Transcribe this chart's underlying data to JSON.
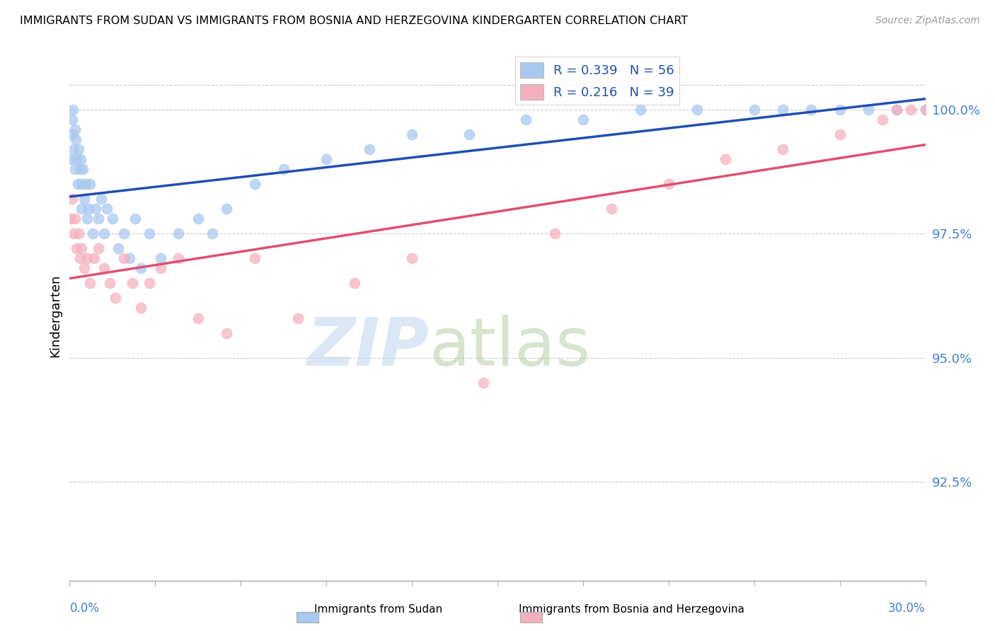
{
  "title": "IMMIGRANTS FROM SUDAN VS IMMIGRANTS FROM BOSNIA AND HERZEGOVINA KINDERGARTEN CORRELATION CHART",
  "source": "Source: ZipAtlas.com",
  "ylabel": "Kindergarten",
  "xlim": [
    0.0,
    30.0
  ],
  "ylim": [
    90.5,
    101.2
  ],
  "yticks": [
    92.5,
    95.0,
    97.5,
    100.0
  ],
  "ytick_labels": [
    "92.5%",
    "95.0%",
    "97.5%",
    "100.0%"
  ],
  "legend_R1": "R = 0.339",
  "legend_N1": "N = 56",
  "legend_R2": "R = 0.216",
  "legend_N2": "N = 39",
  "color_sudan": "#a8c8f0",
  "color_bosnia": "#f5b0c0",
  "trendline_color_sudan": "#2050b0",
  "trendline_color_bosnia": "#e05070",
  "legend_text_color": "#2050b0",
  "ytick_color": "#4080d0",
  "xtick_label_color": "#4080d0",
  "sudan_x": [
    0.05,
    0.08,
    0.1,
    0.12,
    0.15,
    0.18,
    0.2,
    0.22,
    0.25,
    0.28,
    0.3,
    0.35,
    0.38,
    0.4,
    0.42,
    0.45,
    0.5,
    0.55,
    0.6,
    0.65,
    0.7,
    0.8,
    0.9,
    1.0,
    1.1,
    1.2,
    1.3,
    1.5,
    1.7,
    1.9,
    2.1,
    2.3,
    2.5,
    2.8,
    3.2,
    3.8,
    4.5,
    5.0,
    5.5,
    6.5,
    7.5,
    9.0,
    10.5,
    12.0,
    14.0,
    16.0,
    18.0,
    20.0,
    22.0,
    24.0,
    25.0,
    26.0,
    27.0,
    28.0,
    29.0,
    30.0
  ],
  "sudan_y": [
    99.0,
    99.5,
    99.8,
    100.0,
    99.2,
    99.6,
    98.8,
    99.4,
    99.0,
    98.5,
    99.2,
    98.8,
    99.0,
    98.5,
    98.0,
    98.8,
    98.2,
    98.5,
    97.8,
    98.0,
    98.5,
    97.5,
    98.0,
    97.8,
    98.2,
    97.5,
    98.0,
    97.8,
    97.2,
    97.5,
    97.0,
    97.8,
    96.8,
    97.5,
    97.0,
    97.5,
    97.8,
    97.5,
    98.0,
    98.5,
    98.8,
    99.0,
    99.2,
    99.5,
    99.5,
    99.8,
    99.8,
    100.0,
    100.0,
    100.0,
    100.0,
    100.0,
    100.0,
    100.0,
    100.0,
    100.0
  ],
  "bosnia_x": [
    0.05,
    0.1,
    0.15,
    0.2,
    0.25,
    0.3,
    0.35,
    0.4,
    0.5,
    0.6,
    0.7,
    0.85,
    1.0,
    1.2,
    1.4,
    1.6,
    1.9,
    2.2,
    2.5,
    2.8,
    3.2,
    3.8,
    4.5,
    5.5,
    6.5,
    8.0,
    10.0,
    12.0,
    14.5,
    17.0,
    19.0,
    21.0,
    23.0,
    25.0,
    27.0,
    28.5,
    29.0,
    29.5,
    30.0
  ],
  "bosnia_y": [
    97.8,
    98.2,
    97.5,
    97.8,
    97.2,
    97.5,
    97.0,
    97.2,
    96.8,
    97.0,
    96.5,
    97.0,
    97.2,
    96.8,
    96.5,
    96.2,
    97.0,
    96.5,
    96.0,
    96.5,
    96.8,
    97.0,
    95.8,
    95.5,
    97.0,
    95.8,
    96.5,
    97.0,
    94.5,
    97.5,
    98.0,
    98.5,
    99.0,
    99.2,
    99.5,
    99.8,
    100.0,
    100.0,
    100.0
  ]
}
